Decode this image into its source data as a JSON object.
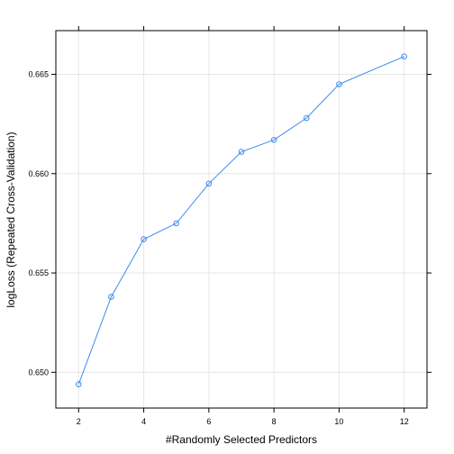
{
  "chart_data": {
    "type": "line",
    "xlabel": "#Randomly Selected Predictors",
    "ylabel": "logLoss (Repeated Cross-Validation)",
    "xlim": [
      1.3,
      12.7
    ],
    "ylim": [
      0.6482,
      0.6672
    ],
    "x_ticks": [
      2,
      4,
      6,
      8,
      10,
      12
    ],
    "y_ticks": [
      0.65,
      0.655,
      0.66,
      0.665
    ],
    "x_tick_labels": [
      "2",
      "4",
      "6",
      "8",
      "10",
      "12"
    ],
    "y_tick_labels": [
      "0.650",
      "0.655",
      "0.660",
      "0.665"
    ],
    "grid": true,
    "series": [
      {
        "x": [
          2,
          3,
          4,
          5,
          6,
          7,
          8,
          9,
          10,
          12
        ],
        "y": [
          0.6494,
          0.6538,
          0.6567,
          0.6575,
          0.6595,
          0.6611,
          0.6617,
          0.6628,
          0.6645,
          0.6659
        ],
        "color": "#3b8bf0"
      }
    ]
  }
}
